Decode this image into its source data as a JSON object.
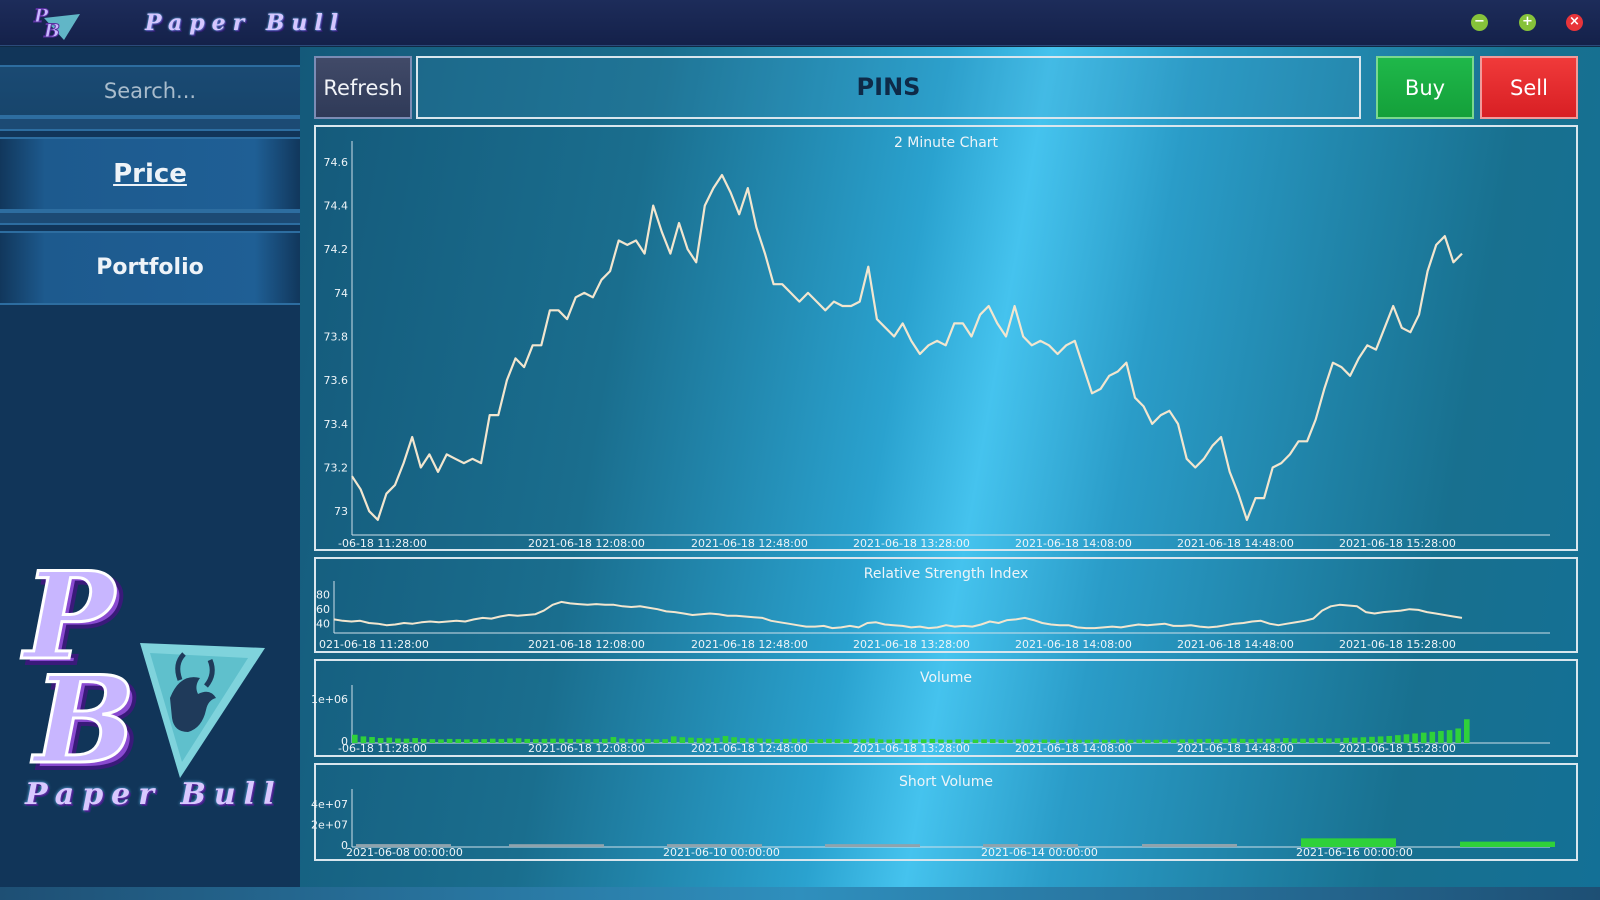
{
  "window": {
    "title": "Paper Bull",
    "minimize_icon": "minus-icon",
    "maximize_icon": "plus-icon",
    "close_icon": "close-icon"
  },
  "sidebar": {
    "search_placeholder": "Search...",
    "nav": [
      {
        "label": "Price",
        "active": true
      },
      {
        "label": "Portfolio",
        "active": false
      }
    ],
    "logo_text": "Paper Bull"
  },
  "toolbar": {
    "refresh_label": "Refresh",
    "ticker": "PINS",
    "buy_label": "Buy",
    "sell_label": "Sell"
  },
  "colors": {
    "price_line": "#f2e6cf",
    "rsi_line": "#f2e6cf",
    "volume_bar": "#2fd13a",
    "short_volume_bar": "#2fd13a",
    "buy": "#1fb84a",
    "sell": "#e8262b"
  },
  "chart_data": [
    {
      "type": "line",
      "title": "2 Minute Chart",
      "ylim": [
        72.9,
        74.65
      ],
      "yticks": [
        "73",
        "73.2",
        "73.4",
        "73.6",
        "73.8",
        "74",
        "74.2",
        "74.4",
        "74.6"
      ],
      "xticks": [
        "-06-18 11:28:00",
        "2021-06-18 12:08:00",
        "2021-06-18 12:48:00",
        "2021-06-18 13:28:00",
        "2021-06-18 14:08:00",
        "2021-06-18 14:48:00",
        "2021-06-18 15:28:00"
      ],
      "values": [
        73.16,
        73.1,
        73.0,
        72.96,
        73.08,
        73.12,
        73.22,
        73.34,
        73.2,
        73.26,
        73.18,
        73.26,
        73.24,
        73.22,
        73.24,
        73.22,
        73.44,
        73.44,
        73.6,
        73.7,
        73.66,
        73.76,
        73.76,
        73.92,
        73.92,
        73.88,
        73.98,
        74.0,
        73.98,
        74.06,
        74.1,
        74.24,
        74.22,
        74.24,
        74.18,
        74.4,
        74.28,
        74.18,
        74.32,
        74.2,
        74.14,
        74.4,
        74.48,
        74.54,
        74.46,
        74.36,
        74.48,
        74.3,
        74.18,
        74.04,
        74.04,
        74.0,
        73.96,
        74.0,
        73.96,
        73.92,
        73.96,
        73.94,
        73.94,
        73.96,
        74.12,
        73.88,
        73.84,
        73.8,
        73.86,
        73.78,
        73.72,
        73.76,
        73.78,
        73.76,
        73.86,
        73.86,
        73.8,
        73.9,
        73.94,
        73.86,
        73.8,
        73.94,
        73.8,
        73.76,
        73.78,
        73.76,
        73.72,
        73.76,
        73.78,
        73.66,
        73.54,
        73.56,
        73.62,
        73.64,
        73.68,
        73.52,
        73.48,
        73.4,
        73.44,
        73.46,
        73.4,
        73.24,
        73.2,
        73.24,
        73.3,
        73.34,
        73.18,
        73.08,
        72.96,
        73.06,
        73.06,
        73.2,
        73.22,
        73.26,
        73.32,
        73.32,
        73.42,
        73.56,
        73.68,
        73.66,
        73.62,
        73.7,
        73.76,
        73.74,
        73.84,
        73.94,
        73.84,
        73.82,
        73.9,
        74.1,
        74.22,
        74.26,
        74.14,
        74.18
      ]
    },
    {
      "type": "line",
      "title": "Relative Strength Index",
      "ylim": [
        30,
        85
      ],
      "yticks": [
        "40",
        "60",
        "80"
      ],
      "xticks": [
        "021-06-18 11:28:00",
        "2021-06-18 12:08:00",
        "2021-06-18 12:48:00",
        "2021-06-18 13:28:00",
        "2021-06-18 14:08:00",
        "2021-06-18 14:48:00",
        "2021-06-18 15:28:00"
      ],
      "values": [
        46,
        44,
        43,
        44,
        41,
        40,
        38,
        39,
        41,
        40,
        42,
        43,
        42,
        43,
        44,
        43,
        46,
        48,
        47,
        50,
        52,
        51,
        52,
        53,
        58,
        66,
        70,
        68,
        67,
        66,
        67,
        66,
        66,
        64,
        63,
        64,
        62,
        60,
        57,
        56,
        54,
        52,
        53,
        54,
        53,
        51,
        51,
        50,
        49,
        48,
        44,
        42,
        40,
        38,
        36,
        36,
        37,
        34,
        35,
        37,
        35,
        41,
        42,
        39,
        38,
        37,
        35,
        36,
        34,
        35,
        38,
        36,
        37,
        36,
        39,
        43,
        41,
        45,
        46,
        48,
        45,
        41,
        39,
        38,
        38,
        35,
        34,
        34,
        35,
        36,
        35,
        37,
        39,
        38,
        39,
        40,
        37,
        37,
        38,
        36,
        35,
        36,
        38,
        40,
        41,
        43,
        44,
        40,
        38,
        40,
        42,
        44,
        47,
        58,
        64,
        66,
        65,
        64,
        56,
        54,
        56,
        57,
        58,
        60,
        59,
        56,
        54,
        52,
        50,
        48
      ]
    },
    {
      "type": "bar",
      "title": "Volume",
      "ylim": [
        0,
        1100000
      ],
      "yticks": [
        "0",
        "1e+06"
      ],
      "xticks": [
        "-06-18 11:28:00",
        "2021-06-18 12:08:00",
        "2021-06-18 12:48:00",
        "2021-06-18 13:28:00",
        "2021-06-18 14:08:00",
        "2021-06-18 14:48:00",
        "2021-06-18 15:28:00"
      ],
      "values": [
        150000,
        110000,
        95000,
        70000,
        80000,
        60000,
        55000,
        70000,
        50000,
        45000,
        40000,
        50000,
        45000,
        40000,
        45000,
        45000,
        55000,
        50000,
        60000,
        65000,
        50000,
        45000,
        50000,
        55000,
        55000,
        50000,
        45000,
        40000,
        45000,
        50000,
        95000,
        60000,
        50000,
        45000,
        50000,
        40000,
        45000,
        110000,
        90000,
        80000,
        70000,
        60000,
        75000,
        120000,
        90000,
        70000,
        65000,
        60000,
        50000,
        45000,
        50000,
        55000,
        50000,
        40000,
        45000,
        50000,
        45000,
        40000,
        45000,
        40000,
        60000,
        40000,
        35000,
        45000,
        40000,
        35000,
        40000,
        50000,
        35000,
        30000,
        40000,
        30000,
        35000,
        40000,
        45000,
        35000,
        30000,
        40000,
        35000,
        30000,
        35000,
        30000,
        30000,
        35000,
        30000,
        30000,
        35000,
        30000,
        30000,
        40000,
        30000,
        35000,
        30000,
        30000,
        35000,
        30000,
        40000,
        40000,
        45000,
        50000,
        40000,
        45000,
        60000,
        50000,
        45000,
        55000,
        50000,
        60000,
        70000,
        60000,
        55000,
        65000,
        70000,
        60000,
        65000,
        75000,
        80000,
        90000,
        100000,
        110000,
        120000,
        140000,
        160000,
        180000,
        200000,
        220000,
        240000,
        260000,
        300000,
        520000
      ]
    },
    {
      "type": "bar",
      "title": "Short Volume",
      "ylim": [
        0,
        45000000
      ],
      "yticks": [
        "0",
        "2e+07",
        "4e+07"
      ],
      "xticks": [
        "2021-06-08 00:00:00",
        "2021-06-10 00:00:00",
        "2021-06-14 00:00:00",
        "2021-06-16 00:00:00"
      ],
      "values": [
        900000,
        800000,
        900000,
        850000,
        900000,
        1000000,
        6500000,
        3300000
      ]
    }
  ]
}
